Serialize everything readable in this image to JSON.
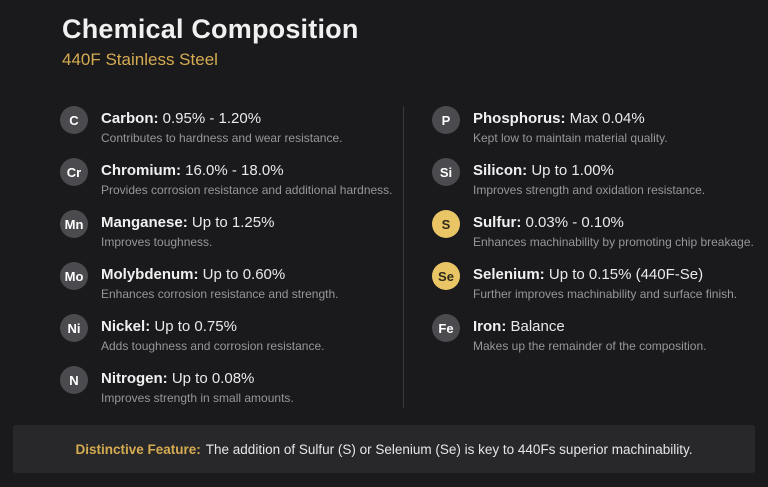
{
  "header": {
    "title": "Chemical Composition",
    "subtitle": "440F Stainless Steel"
  },
  "colors": {
    "background": "#1a1a1c",
    "panel": "#28282a",
    "accent": "#d5ab52",
    "badge_gray": "#4b4b4f",
    "badge_gold": "#eac566",
    "text_primary": "#f0f0f1",
    "text_secondary": "#97979a",
    "divider": "#39393b"
  },
  "columns": {
    "left": [
      {
        "symbol": "C",
        "name": "Carbon:",
        "value": "0.95% - 1.20%",
        "description": "Contributes to hardness and wear resistance.",
        "highlight": false
      },
      {
        "symbol": "Cr",
        "name": "Chromium:",
        "value": "16.0% - 18.0%",
        "description": "Provides corrosion resistance and additional hardness.",
        "highlight": false
      },
      {
        "symbol": "Mn",
        "name": "Manganese:",
        "value": "Up to 1.25%",
        "description": "Improves toughness.",
        "highlight": false
      },
      {
        "symbol": "Mo",
        "name": "Molybdenum:",
        "value": "Up to 0.60%",
        "description": "Enhances corrosion resistance and strength.",
        "highlight": false
      },
      {
        "symbol": "Ni",
        "name": "Nickel:",
        "value": "Up to 0.75%",
        "description": "Adds toughness and corrosion resistance.",
        "highlight": false
      },
      {
        "symbol": "N",
        "name": "Nitrogen:",
        "value": "Up to 0.08%",
        "description": "Improves strength in small amounts.",
        "highlight": false
      }
    ],
    "right": [
      {
        "symbol": "P",
        "name": "Phosphorus:",
        "value": "Max 0.04%",
        "description": "Kept low to maintain material quality.",
        "highlight": false
      },
      {
        "symbol": "Si",
        "name": "Silicon:",
        "value": "Up to 1.00%",
        "description": "Improves strength and oxidation resistance.",
        "highlight": false
      },
      {
        "symbol": "S",
        "name": "Sulfur:",
        "value": "0.03% - 0.10%",
        "description": "Enhances machinability by promoting chip breakage.",
        "highlight": true
      },
      {
        "symbol": "Se",
        "name": "Selenium:",
        "value": "Up to 0.15% (440F-Se)",
        "description": "Further improves machinability and surface finish.",
        "highlight": true
      },
      {
        "symbol": "Fe",
        "name": "Iron:",
        "value": "Balance",
        "description": "Makes up the remainder of the composition.",
        "highlight": false
      }
    ]
  },
  "footer": {
    "label": "Distinctive Feature:",
    "text": "The addition of Sulfur (S) or Selenium (Se) is key to 440Fs superior machinability."
  }
}
